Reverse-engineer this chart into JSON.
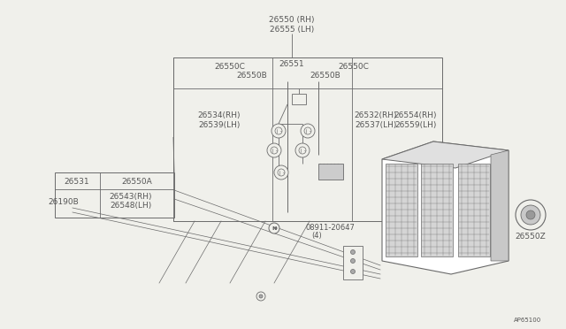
{
  "bg_color": "#f0f0eb",
  "line_color": "#6a6a6a",
  "text_color": "#555555",
  "fs": 6.5,
  "labels": {
    "top1": "26550 (RH)",
    "top2": "26555 (LH)",
    "c_left": "26550C",
    "c_mid": "26551",
    "c_right": "26550C",
    "b_left": "26550B",
    "b_right": "26550B",
    "rh534": "26534(RH)",
    "lh539": "26539(LH)",
    "rh532": "26532(RH)",
    "lh537": "26537(LH)",
    "rh554": "26554(RH)",
    "lh559": "26559(LH)",
    "p26531": "26531",
    "p26550A": "26550A",
    "p26190B": "26190B",
    "rh543": "26543(RH)",
    "lh548": "26548(LH)",
    "nut_num": "08911-20647",
    "nut_qty": "(4)",
    "grommet": "26550Z",
    "ref": "AP65100"
  }
}
